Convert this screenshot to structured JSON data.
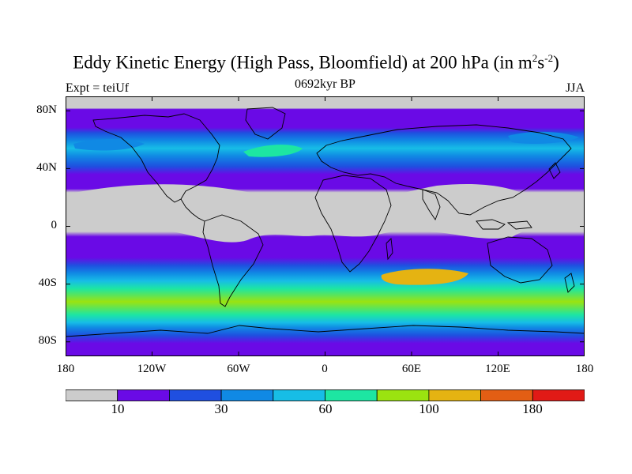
{
  "title": {
    "prefix": "Eddy Kinetic Energy (High Pass, Bloomfield) at 200 hPa (in m",
    "sup1": "2",
    "mid": "s",
    "sup2": "-2",
    "suffix": ")"
  },
  "subtitle": "0692kyr BP",
  "left_label": "Expt = teiUf",
  "right_label": "JJA",
  "y_ticks": [
    "80N",
    "40N",
    "0",
    "40S",
    "80S"
  ],
  "x_ticks": [
    "180",
    "120W",
    "60W",
    "0",
    "60E",
    "120E",
    "180"
  ],
  "colorbar": {
    "colors": [
      "#cccccc",
      "#6a0ae6",
      "#1f4fe0",
      "#1089e4",
      "#17bde6",
      "#1de6a2",
      "#9be310",
      "#e5b312",
      "#e35e14",
      "#e11a16"
    ],
    "labels": [
      "10",
      "30",
      "60",
      "100",
      "180"
    ]
  },
  "chart_data": {
    "type": "heatmap",
    "variable": "Eddy kinetic energy at 200 hPa (m2 s-2), JJA",
    "xlim": [
      -180,
      180
    ],
    "ylim": [
      -90,
      90
    ],
    "x_ticks": [
      -180,
      -120,
      -60,
      0,
      60,
      120,
      180
    ],
    "y_ticks": [
      80,
      40,
      0,
      -40,
      -80
    ],
    "levels": [
      10,
      20,
      30,
      40,
      60,
      80,
      100,
      140,
      180
    ]
  }
}
